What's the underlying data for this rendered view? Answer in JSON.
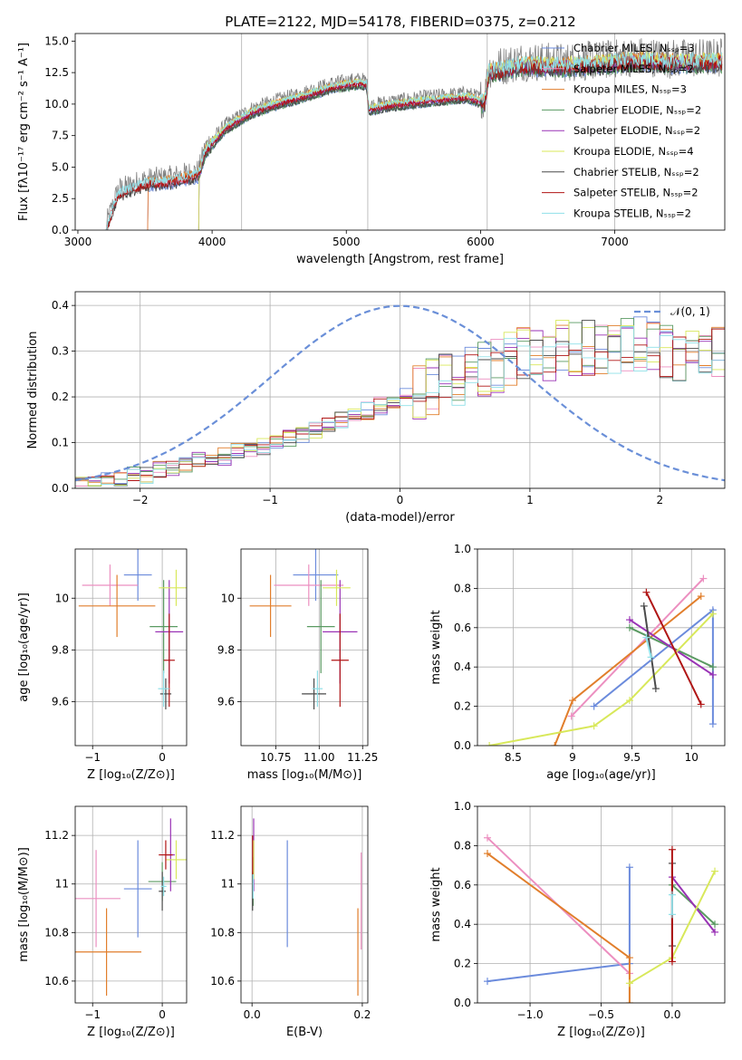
{
  "colors": {
    "chabrier_miles": "#6b8bdc",
    "salpeter_miles": "#ec8fc0",
    "kroupa_miles": "#e17e2b",
    "chabrier_elodie": "#5a9a62",
    "salpeter_elodie": "#9932b5",
    "kroupa_elodie": "#d8e85a",
    "chabrier_stelib": "#4a4a4a",
    "salpeter_stelib": "#b01515",
    "kroupa_stelib": "#8fe0e8",
    "data": "#808080",
    "gaussian": "#6a8fd8"
  },
  "chart_data": [
    {
      "type": "line",
      "id": "spectrum",
      "title": "PLATE=2122, MJD=54178, FIBERID=0375, z=0.212",
      "xlabel": "wavelength [Angstrom, rest frame]",
      "ylabel": "Flux [fλ10⁻¹⁷ erg cm⁻² s⁻¹ A⁻¹]",
      "xlim": [
        2980,
        7820
      ],
      "ylim": [
        0,
        15.6
      ],
      "xticks": [
        3000,
        4000,
        5000,
        6000,
        7000
      ],
      "yticks": [
        0.0,
        2.5,
        5.0,
        7.5,
        10.0,
        12.5,
        15.0
      ],
      "vlines": [
        4220,
        5160,
        6050,
        7000
      ],
      "legend": [
        "Chabrier MILES, Nₛₛₚ=3",
        "Salpeter MILES, Nₛₛₚ=2",
        "Kroupa MILES, Nₛₛₚ=3",
        "Chabrier ELODIE, Nₛₛₚ=2",
        "Salpeter ELODIE, Nₛₛₚ=2",
        "Kroupa ELODIE, Nₛₛₚ=4",
        "Chabrier STELIB, Nₛₛₚ=2",
        "Salpeter STELIB, Nₛₛₚ=2",
        "Kroupa STELIB, Nₛₛₚ=2"
      ],
      "legend_placement": "top-right",
      "continuum": {
        "x": [
          3210,
          3300,
          3500,
          3700,
          3900,
          3950,
          4100,
          4300,
          4500,
          4700,
          4900,
          5100,
          5150,
          5170,
          5300,
          5600,
          5900,
          6030,
          6060,
          6300,
          6600,
          6900,
          7200,
          7400,
          7800
        ],
        "y": [
          0.0,
          2.8,
          3.6,
          3.8,
          4.3,
          6.2,
          8.0,
          9.3,
          10.0,
          10.6,
          11.3,
          11.6,
          11.5,
          9.5,
          9.8,
          10.2,
          10.5,
          10.0,
          12.4,
          13.0,
          12.9,
          13.1,
          13.4,
          13.2,
          13.3
        ]
      },
      "model_starts": {
        "miles": 3520,
        "elodie": 3900,
        "stelib": 3210
      }
    },
    {
      "type": "bar",
      "id": "residuals",
      "xlabel": "(data-model)/error",
      "ylabel": "Normed distribution",
      "xlim": [
        -2.5,
        2.5
      ],
      "ylim": [
        0,
        0.43
      ],
      "xticks": [
        -2,
        -1,
        0,
        1,
        2
      ],
      "yticks": [
        0.0,
        0.1,
        0.2,
        0.3,
        0.4
      ],
      "gaussian_label": "𝒩(0, 1)",
      "bin_width": 0.1,
      "bins_from": -2.5,
      "envelope": [
        0.01,
        0.01,
        0.02,
        0.02,
        0.03,
        0.03,
        0.04,
        0.04,
        0.05,
        0.06,
        0.07,
        0.07,
        0.08,
        0.08,
        0.09,
        0.1,
        0.11,
        0.12,
        0.13,
        0.14,
        0.15,
        0.16,
        0.17,
        0.18,
        0.19,
        0.2,
        0.21,
        0.22,
        0.23,
        0.24,
        0.25,
        0.26,
        0.27,
        0.28,
        0.29,
        0.3,
        0.3,
        0.31,
        0.31,
        0.31,
        0.31,
        0.31,
        0.31,
        0.31,
        0.3,
        0.3,
        0.3,
        0.3,
        0.29,
        0.29
      ]
    },
    {
      "type": "scatter",
      "id": "age_vs_Z",
      "xlabel": "Z [log₁₀(Z/Z⊙)]",
      "ylabel": "age  [log₁₀(age/yr)]",
      "xlim": [
        -1.25,
        0.35
      ],
      "ylim": [
        9.43,
        10.19
      ],
      "xticks": [
        -1,
        0
      ],
      "yticks": [
        9.6,
        9.8,
        10.0
      ],
      "points": [
        {
          "m": "chabrier_miles",
          "x": -0.35,
          "y": 10.09,
          "xe": 0.2,
          "ye": 0.1
        },
        {
          "m": "salpeter_miles",
          "x": -0.75,
          "y": 10.05,
          "xe": 0.4,
          "ye": 0.08
        },
        {
          "m": "kroupa_miles",
          "x": -0.65,
          "y": 9.97,
          "xe": 0.55,
          "ye": 0.12
        },
        {
          "m": "chabrier_elodie",
          "x": 0.02,
          "y": 9.89,
          "xe": 0.2,
          "ye": 0.18
        },
        {
          "m": "salpeter_elodie",
          "x": 0.1,
          "y": 9.87,
          "xe": 0.2,
          "ye": 0.2
        },
        {
          "m": "kroupa_elodie",
          "x": 0.2,
          "y": 10.04,
          "xe": 0.25,
          "ye": 0.07
        },
        {
          "m": "chabrier_stelib",
          "x": 0.05,
          "y": 9.63,
          "xe": 0.08,
          "ye": 0.06
        },
        {
          "m": "salpeter_stelib",
          "x": 0.1,
          "y": 9.76,
          "xe": 0.08,
          "ye": 0.18
        },
        {
          "m": "kroupa_stelib",
          "x": 0.02,
          "y": 9.65,
          "xe": 0.08,
          "ye": 0.07
        }
      ]
    },
    {
      "type": "scatter",
      "id": "age_vs_mass",
      "xlabel": "mass [log₁₀(M/M⊙)]",
      "ylabel": "",
      "xlim": [
        10.55,
        11.28
      ],
      "ylim": [
        9.43,
        10.19
      ],
      "xticks": [
        10.75,
        11.0,
        11.25
      ],
      "xtick_labels": [
        "10.75",
        "11.00",
        "11.25"
      ],
      "yticks": [
        9.6,
        9.8,
        10.0
      ],
      "points": [
        {
          "m": "chabrier_miles",
          "x": 10.98,
          "y": 10.09,
          "xe": 0.13,
          "ye": 0.1
        },
        {
          "m": "salpeter_miles",
          "x": 10.94,
          "y": 10.05,
          "xe": 0.2,
          "ye": 0.08
        },
        {
          "m": "kroupa_miles",
          "x": 10.72,
          "y": 9.97,
          "xe": 0.12,
          "ye": 0.12
        },
        {
          "m": "chabrier_elodie",
          "x": 11.01,
          "y": 9.89,
          "xe": 0.08,
          "ye": 0.18
        },
        {
          "m": "salpeter_elodie",
          "x": 11.12,
          "y": 9.87,
          "xe": 0.1,
          "ye": 0.2
        },
        {
          "m": "kroupa_elodie",
          "x": 11.1,
          "y": 10.04,
          "xe": 0.08,
          "ye": 0.07
        },
        {
          "m": "chabrier_stelib",
          "x": 10.97,
          "y": 9.63,
          "xe": 0.07,
          "ye": 0.06
        },
        {
          "m": "salpeter_stelib",
          "x": 11.12,
          "y": 9.76,
          "xe": 0.05,
          "ye": 0.18
        },
        {
          "m": "kroupa_stelib",
          "x": 10.99,
          "y": 9.65,
          "xe": 0.03,
          "ye": 0.07
        }
      ]
    },
    {
      "type": "line",
      "id": "weight_vs_age",
      "xlabel": "age  [log₁₀(age/yr)]",
      "ylabel": "mass weight",
      "xlim": [
        8.2,
        10.28
      ],
      "ylim": [
        0,
        1.0
      ],
      "xticks": [
        8.5,
        9.0,
        9.5,
        10.0
      ],
      "yticks": [
        0.0,
        0.2,
        0.4,
        0.6,
        0.8,
        1.0
      ],
      "series": [
        {
          "m": "chabrier_miles",
          "x": [
            9.18,
            10.18,
            10.18
          ],
          "y": [
            0.2,
            0.69,
            0.11
          ]
        },
        {
          "m": "salpeter_miles",
          "x": [
            8.99,
            10.1
          ],
          "y": [
            0.15,
            0.85
          ]
        },
        {
          "m": "kroupa_miles",
          "x": [
            8.85,
            9.0,
            10.08
          ],
          "y": [
            0.0,
            0.23,
            0.76
          ]
        },
        {
          "m": "chabrier_elodie",
          "x": [
            9.48,
            10.18
          ],
          "y": [
            0.6,
            0.4
          ]
        },
        {
          "m": "salpeter_elodie",
          "x": [
            9.48,
            10.18
          ],
          "y": [
            0.64,
            0.36
          ]
        },
        {
          "m": "kroupa_elodie",
          "x": [
            8.3,
            9.18,
            9.48,
            10.18
          ],
          "y": [
            0.0,
            0.1,
            0.23,
            0.67
          ]
        },
        {
          "m": "chabrier_stelib",
          "x": [
            9.6,
            9.7
          ],
          "y": [
            0.71,
            0.29
          ]
        },
        {
          "m": "salpeter_stelib",
          "x": [
            9.62,
            10.08
          ],
          "y": [
            0.78,
            0.21
          ]
        },
        {
          "m": "kroupa_stelib",
          "x": [
            9.62,
            9.66
          ],
          "y": [
            0.55,
            0.45
          ]
        }
      ]
    },
    {
      "type": "scatter",
      "id": "mass_vs_Z",
      "xlabel": "Z [log₁₀(Z/Z⊙)]",
      "ylabel": "mass [log₁₀(M/M⊙)]",
      "xlim": [
        -1.25,
        0.35
      ],
      "ylim": [
        10.51,
        11.32
      ],
      "xticks": [
        -1,
        0
      ],
      "yticks": [
        10.6,
        10.8,
        11.0,
        11.2
      ],
      "points": [
        {
          "m": "chabrier_miles",
          "x": -0.35,
          "y": 10.98,
          "xe": 0.2,
          "ye": 0.2
        },
        {
          "m": "salpeter_miles",
          "x": -0.95,
          "y": 10.94,
          "xe": 0.35,
          "ye": 0.2
        },
        {
          "m": "kroupa_miles",
          "x": -0.8,
          "y": 10.72,
          "xe": 0.5,
          "ye": 0.18
        },
        {
          "m": "chabrier_elodie",
          "x": 0.0,
          "y": 11.01,
          "xe": 0.2,
          "ye": 0.08
        },
        {
          "m": "salpeter_elodie",
          "x": 0.12,
          "y": 11.12,
          "xe": 0.06,
          "ye": 0.15
        },
        {
          "m": "kroupa_elodie",
          "x": 0.2,
          "y": 11.1,
          "xe": 0.15,
          "ye": 0.08
        },
        {
          "m": "chabrier_stelib",
          "x": 0.0,
          "y": 10.97,
          "xe": 0.05,
          "ye": 0.08
        },
        {
          "m": "salpeter_stelib",
          "x": 0.05,
          "y": 11.12,
          "xe": 0.1,
          "ye": 0.06
        },
        {
          "m": "kroupa_stelib",
          "x": 0.02,
          "y": 10.99,
          "xe": 0.04,
          "ye": 0.04
        }
      ]
    },
    {
      "type": "scatter",
      "id": "mass_vs_ebv",
      "xlabel": "E(B-V)",
      "ylabel": "",
      "xlim": [
        -0.02,
        0.21
      ],
      "ylim": [
        10.51,
        11.32
      ],
      "xticks": [
        0.0,
        0.2
      ],
      "xtick_labels": [
        "0.0",
        "0.2"
      ],
      "yticks": [
        10.6,
        10.8,
        11.0,
        11.2
      ],
      "points": [
        {
          "m": "chabrier_miles",
          "x": 0.064,
          "y": 10.96,
          "xe": 0,
          "ye": 0.22
        },
        {
          "m": "salpeter_miles",
          "x": 0.198,
          "y": 10.93,
          "xe": 0,
          "ye": 0.2
        },
        {
          "m": "kroupa_miles",
          "x": 0.192,
          "y": 10.72,
          "xe": 0,
          "ye": 0.18
        },
        {
          "m": "chabrier_elodie",
          "x": 0.002,
          "y": 11.01,
          "xe": 0,
          "ye": 0.1
        },
        {
          "m": "salpeter_elodie",
          "x": 0.003,
          "y": 11.12,
          "xe": 0,
          "ye": 0.15
        },
        {
          "m": "kroupa_elodie",
          "x": 0.003,
          "y": 11.1,
          "xe": 0,
          "ye": 0.08
        },
        {
          "m": "chabrier_stelib",
          "x": 0.001,
          "y": 10.97,
          "xe": 0,
          "ye": 0.08
        },
        {
          "m": "salpeter_stelib",
          "x": 0.001,
          "y": 11.12,
          "xe": 0,
          "ye": 0.08
        },
        {
          "m": "kroupa_stelib",
          "x": 0.002,
          "y": 10.99,
          "xe": 0,
          "ye": 0.05
        }
      ]
    },
    {
      "type": "line",
      "id": "weight_vs_Z",
      "xlabel": "Z [log₁₀(Z/Z⊙)]",
      "ylabel": "mass weight",
      "xlim": [
        -1.37,
        0.37
      ],
      "ylim": [
        0,
        1.0
      ],
      "xticks": [
        -1.0,
        -0.5,
        0.0
      ],
      "xtick_labels": [
        "−1.0",
        "−0.5",
        "0.0"
      ],
      "yticks": [
        0.0,
        0.2,
        0.4,
        0.6,
        0.8,
        1.0
      ],
      "series": [
        {
          "m": "chabrier_miles",
          "x": [
            -1.3,
            -0.3,
            -0.3
          ],
          "y": [
            0.11,
            0.2,
            0.69
          ]
        },
        {
          "m": "salpeter_miles",
          "x": [
            -1.3,
            -0.3
          ],
          "y": [
            0.84,
            0.15
          ]
        },
        {
          "m": "kroupa_miles",
          "x": [
            -1.3,
            -0.3,
            -0.3
          ],
          "y": [
            0.76,
            0.23,
            0.0
          ]
        },
        {
          "m": "chabrier_elodie",
          "x": [
            0.0,
            0.3
          ],
          "y": [
            0.6,
            0.4
          ]
        },
        {
          "m": "salpeter_elodie",
          "x": [
            0.0,
            0.3
          ],
          "y": [
            0.64,
            0.36
          ]
        },
        {
          "m": "kroupa_elodie",
          "x": [
            -0.3,
            0.0,
            0.3
          ],
          "y": [
            0.1,
            0.23,
            0.67
          ]
        },
        {
          "m": "chabrier_stelib",
          "x": [
            0.0,
            0.0
          ],
          "y": [
            0.71,
            0.29
          ]
        },
        {
          "m": "salpeter_stelib",
          "x": [
            0.0,
            0.0
          ],
          "y": [
            0.78,
            0.21
          ]
        },
        {
          "m": "kroupa_stelib",
          "x": [
            0.0,
            0.0
          ],
          "y": [
            0.55,
            0.45
          ]
        }
      ]
    }
  ]
}
